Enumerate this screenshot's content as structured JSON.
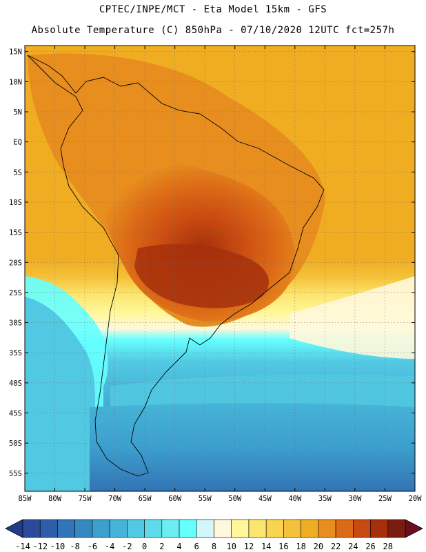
{
  "header": {
    "line1": "CPTEC/INPE/MCT -  Eta Model 15km - GFS",
    "line2": "Absolute Temperature (C) 850hPa - 07/10/2020 12UTC fct=257h"
  },
  "map": {
    "projection": "lat-lon",
    "lon_range": [
      -85,
      -20
    ],
    "lat_range": [
      -58,
      16
    ],
    "lat_ticks": [
      {
        "value": 15,
        "label": "15N"
      },
      {
        "value": 10,
        "label": "10N"
      },
      {
        "value": 5,
        "label": "5N"
      },
      {
        "value": 0,
        "label": "EQ"
      },
      {
        "value": -5,
        "label": "5S"
      },
      {
        "value": -10,
        "label": "10S"
      },
      {
        "value": -15,
        "label": "15S"
      },
      {
        "value": -20,
        "label": "20S"
      },
      {
        "value": -25,
        "label": "25S"
      },
      {
        "value": -30,
        "label": "30S"
      },
      {
        "value": -35,
        "label": "35S"
      },
      {
        "value": -40,
        "label": "40S"
      },
      {
        "value": -45,
        "label": "45S"
      },
      {
        "value": -50,
        "label": "50S"
      },
      {
        "value": -55,
        "label": "55S"
      }
    ],
    "lon_ticks": [
      {
        "value": -85,
        "label": "85W"
      },
      {
        "value": -80,
        "label": "80W"
      },
      {
        "value": -75,
        "label": "75W"
      },
      {
        "value": -70,
        "label": "70W"
      },
      {
        "value": -65,
        "label": "65W"
      },
      {
        "value": -60,
        "label": "60W"
      },
      {
        "value": -55,
        "label": "55W"
      },
      {
        "value": -50,
        "label": "50W"
      },
      {
        "value": -45,
        "label": "45W"
      },
      {
        "value": -40,
        "label": "40W"
      },
      {
        "value": -35,
        "label": "35W"
      },
      {
        "value": -30,
        "label": "30W"
      },
      {
        "value": -25,
        "label": "25W"
      },
      {
        "value": -20,
        "label": "20W"
      }
    ]
  },
  "colorbar": {
    "levels": [
      {
        "label": "-14",
        "color": "#2b4a9b"
      },
      {
        "label": "-12",
        "color": "#2f5ea8"
      },
      {
        "label": "-10",
        "color": "#3274b5"
      },
      {
        "label": "-8",
        "color": "#3788c0"
      },
      {
        "label": "-6",
        "color": "#3d9fcd"
      },
      {
        "label": "-4",
        "color": "#46b4d8"
      },
      {
        "label": "-2",
        "color": "#52c9e2"
      },
      {
        "label": "0",
        "color": "#5ddbea"
      },
      {
        "label": "2",
        "color": "#6aeef2"
      },
      {
        "label": "4",
        "color": "#66ffff"
      },
      {
        "label": "6",
        "color": "#d2f6fa"
      },
      {
        "label": "8",
        "color": "#fff8dc"
      },
      {
        "label": "10",
        "color": "#fff79a"
      },
      {
        "label": "12",
        "color": "#fde670"
      },
      {
        "label": "14",
        "color": "#f8d450"
      },
      {
        "label": "16",
        "color": "#f4c13a"
      },
      {
        "label": "18",
        "color": "#f0ad22"
      },
      {
        "label": "20",
        "color": "#e88e1e"
      },
      {
        "label": "22",
        "color": "#dc6a16"
      },
      {
        "label": "24",
        "color": "#c94a10"
      },
      {
        "label": "26",
        "color": "#a6300c"
      },
      {
        "label": "28",
        "color": "#7a1c10"
      }
    ],
    "under_color": "#233c8a",
    "over_color": "#6a0f1e"
  }
}
